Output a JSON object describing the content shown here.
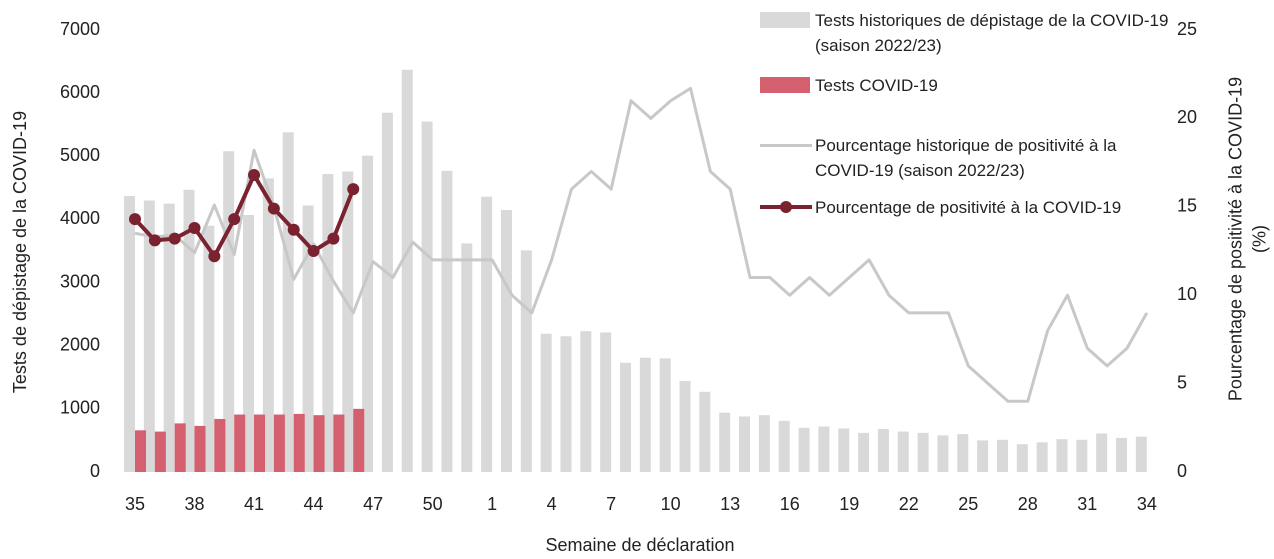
{
  "chart_data": {
    "type": "bar",
    "xlabel": "Semaine de déclaration",
    "ylabel": "Tests de dépistage de la COVID-19",
    "y2label": "Pourcentage de positivité à la COVID-19 (%)",
    "categories": [
      35,
      null,
      null,
      38,
      null,
      null,
      41,
      null,
      null,
      44,
      null,
      null,
      47,
      null,
      null,
      50,
      null,
      null,
      1,
      null,
      null,
      4,
      null,
      null,
      7,
      null,
      null,
      10,
      null,
      null,
      13,
      null,
      null,
      16,
      null,
      null,
      19,
      null,
      null,
      22,
      null,
      null,
      25,
      null,
      null,
      28,
      null,
      null,
      31,
      null,
      null,
      34
    ],
    "ylim": [
      0,
      7000
    ],
    "yticks": [
      0,
      1000,
      2000,
      3000,
      4000,
      5000,
      6000,
      7000
    ],
    "y2lim": [
      0,
      25
    ],
    "y2ticks": [
      0,
      5,
      10,
      15,
      20,
      25
    ],
    "series": [
      {
        "name": "Tests historiques de dépistage de la COVID-19 (saison 2022/23)",
        "type": "bar",
        "color": "#d9d9d9",
        "values": [
          4370,
          4300,
          4250,
          4470,
          3900,
          5080,
          4070,
          4650,
          5380,
          4220,
          4720,
          4760,
          5010,
          5690,
          6370,
          5550,
          4770,
          3620,
          4360,
          4150,
          3510,
          2190,
          2150,
          2230,
          2210,
          1730,
          1810,
          1800,
          1440,
          1270,
          940,
          880,
          900,
          810,
          700,
          720,
          690,
          620,
          680,
          640,
          620,
          580,
          600,
          500,
          510,
          440,
          470,
          520,
          510,
          610,
          540,
          560
        ]
      },
      {
        "name": "Tests COVID-19",
        "type": "bar",
        "color": "#d45f6e",
        "values": [
          660,
          640,
          770,
          730,
          840,
          910,
          910,
          910,
          920,
          900,
          910,
          1000,
          null,
          null,
          null,
          null,
          null,
          null,
          null,
          null,
          null,
          null,
          null,
          null,
          null,
          null,
          null,
          null,
          null,
          null,
          null,
          null,
          null,
          null,
          null,
          null,
          null,
          null,
          null,
          null,
          null,
          null,
          null,
          null,
          null,
          null,
          null,
          null,
          null,
          null,
          null,
          null
        ]
      },
      {
        "name": "Pourcentage historique de positivité à la COVID-19 (saison 2022/23)",
        "type": "line",
        "axis": "y2",
        "color": "#c8c8c8",
        "values": [
          13.5,
          13.3,
          13.4,
          12.4,
          15.1,
          12.3,
          18.2,
          15.0,
          10.9,
          12.9,
          10.8,
          9.0,
          11.9,
          11.0,
          13.0,
          12.0,
          12.0,
          12.0,
          12.0,
          10.0,
          9.0,
          12.0,
          16.0,
          17.0,
          16.0,
          21.0,
          20.0,
          21.0,
          21.7,
          17.0,
          16.0,
          11.0,
          11.0,
          10.0,
          11.0,
          10.0,
          11.0,
          12.0,
          10.0,
          9.0,
          9.0,
          9.0,
          6.0,
          5.0,
          4.0,
          4.0,
          8.0,
          10.0,
          7.0,
          6.0,
          7.0,
          9.0
        ]
      },
      {
        "name": "Pourcentage de positivité à la COVID-19",
        "type": "line",
        "axis": "y2",
        "color": "#7b2230",
        "markers": true,
        "values": [
          14.3,
          13.1,
          13.2,
          13.8,
          12.2,
          14.3,
          16.8,
          14.9,
          13.7,
          12.5,
          13.2,
          16.0,
          null,
          null,
          null,
          null,
          null,
          null,
          null,
          null,
          null,
          null,
          null,
          null,
          null,
          null,
          null,
          null,
          null,
          null,
          null,
          null,
          null,
          null,
          null,
          null,
          null,
          null,
          null,
          null,
          null,
          null,
          null,
          null,
          null,
          null,
          null,
          null,
          null,
          null,
          null,
          null
        ]
      }
    ]
  }
}
